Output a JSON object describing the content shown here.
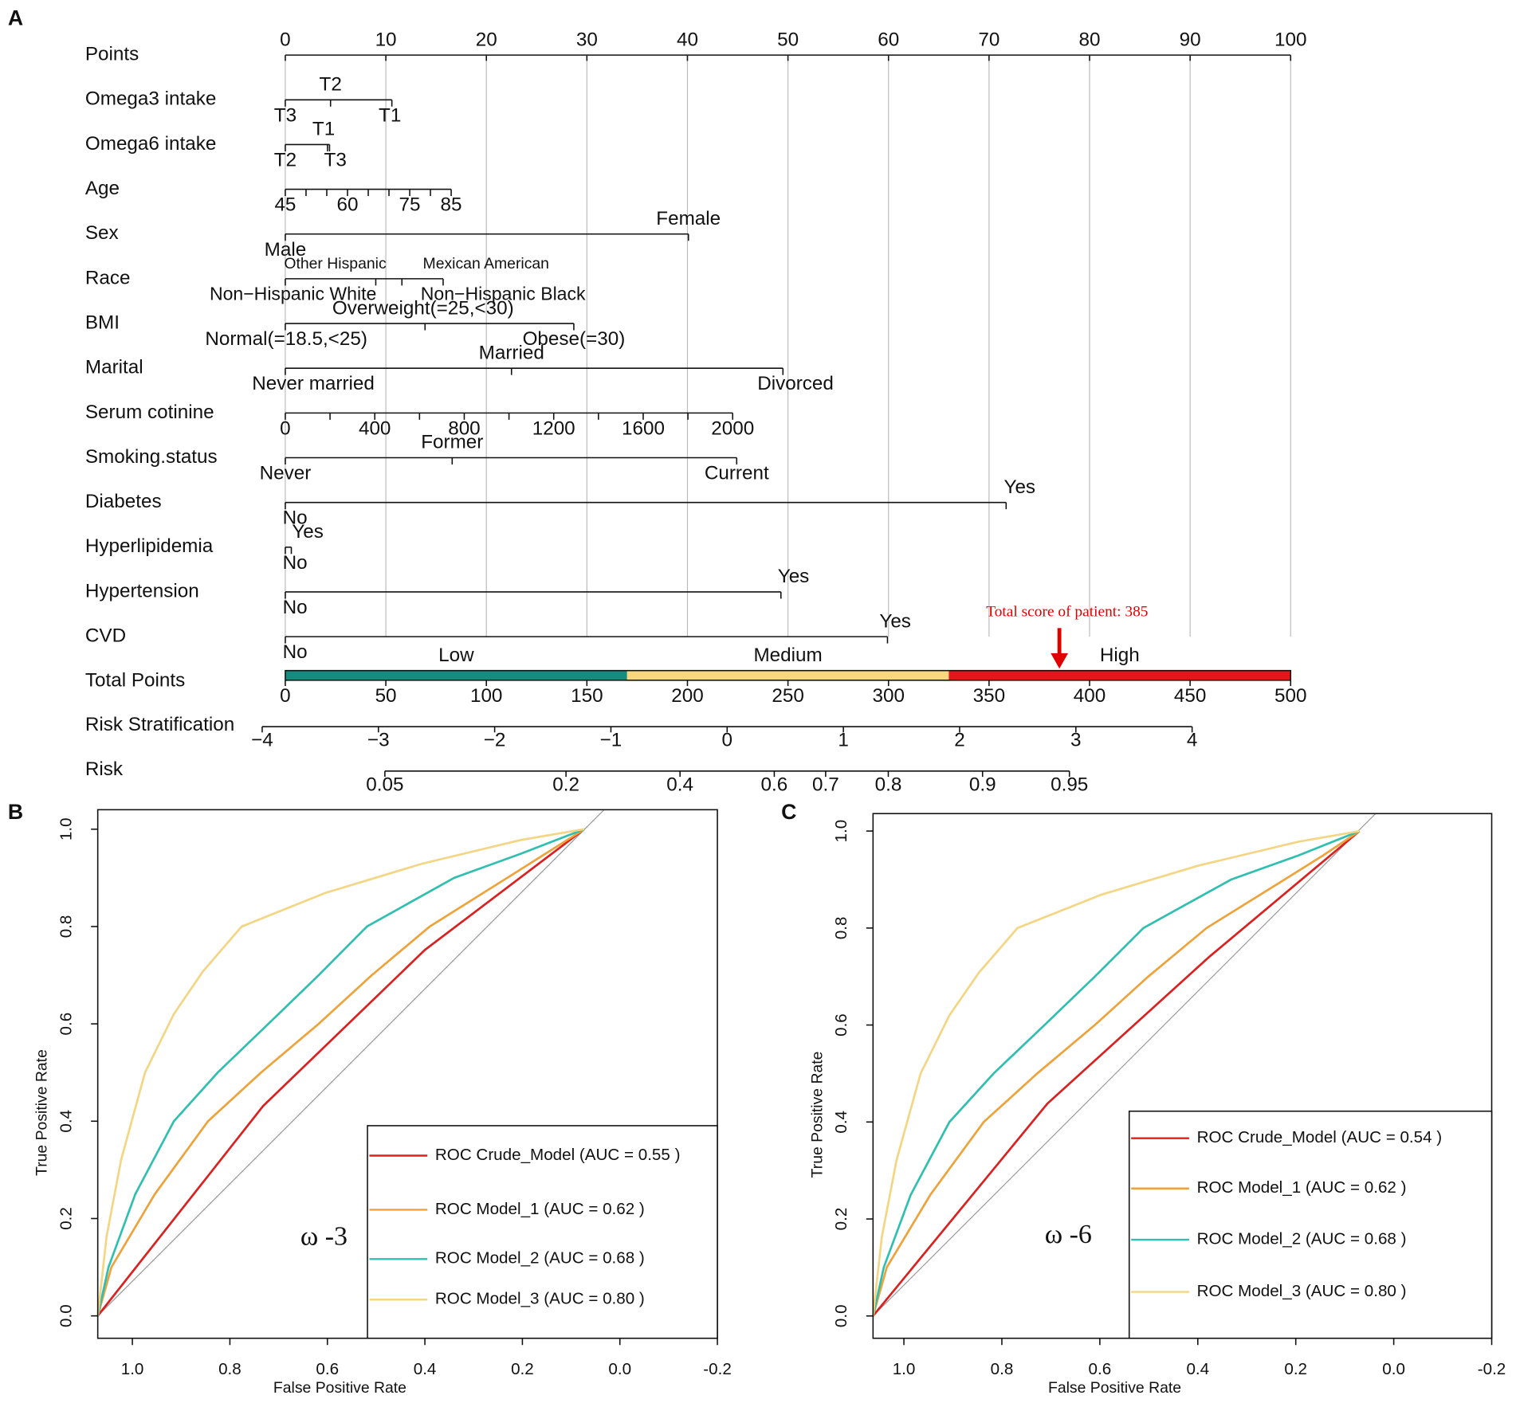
{
  "panel_labels": [
    "A",
    "B",
    "C"
  ],
  "nomogram": {
    "points": {
      "label": "Points",
      "lim": [
        0,
        100
      ],
      "ticks": [
        0,
        10,
        20,
        30,
        40,
        50,
        60,
        70,
        80,
        90,
        100
      ]
    },
    "variables": [
      {
        "label": "Omega3 intake",
        "levels": [
          {
            "label": "T3",
            "points": 0
          },
          {
            "label": "T2",
            "points": 4.5
          },
          {
            "label": "T1",
            "points": 10.6
          }
        ]
      },
      {
        "label": "Omega6 intake",
        "levels": [
          {
            "label": "T2",
            "points": 0
          },
          {
            "label": "T1",
            "points": 4.2
          },
          {
            "label": "T3",
            "points": 4.4
          }
        ]
      },
      {
        "label": "Age",
        "range": [
          45,
          85
        ],
        "points_range": [
          0,
          16.5
        ],
        "ticks": [
          45,
          60,
          75,
          85
        ],
        "minor_ticks": [
          50,
          55,
          65,
          70,
          80
        ]
      },
      {
        "label": "Sex",
        "levels": [
          {
            "label": "Male",
            "points": 0
          },
          {
            "label": "Female",
            "points": 40.1
          }
        ]
      },
      {
        "label": "Race",
        "levels": [
          {
            "label": "Non−Hispanic White",
            "points": 0
          },
          {
            "label": "Other Hispanic",
            "points": 9.0
          },
          {
            "label": "Mexican American",
            "points": 11.6
          },
          {
            "label": "Non−Hispanic Black",
            "points": 15.7
          }
        ]
      },
      {
        "label": "BMI",
        "levels": [
          {
            "label": "Normal(=18.5,<25)",
            "points": 0
          },
          {
            "label": "Overweight(=25,<30)",
            "points": 13.9
          },
          {
            "label": "Obese(=30)",
            "points": 28.7
          }
        ]
      },
      {
        "label": "Marital",
        "levels": [
          {
            "label": "Never married",
            "points": 0
          },
          {
            "label": "Married",
            "points": 22.5
          },
          {
            "label": "Divorced",
            "points": 49.5
          }
        ]
      },
      {
        "label": "Serum cotinine",
        "range": [
          0,
          2000
        ],
        "points_range": [
          0,
          44.5
        ],
        "ticks": [
          0,
          400,
          800,
          1200,
          1600,
          2000
        ],
        "minor_ticks": [
          200,
          600,
          1000,
          1400,
          1800
        ]
      },
      {
        "label": "Smoking.status",
        "levels": [
          {
            "label": "Never",
            "points": 0
          },
          {
            "label": "Former",
            "points": 16.6
          },
          {
            "label": "Current",
            "points": 44.9
          }
        ]
      },
      {
        "label": "Diabetes",
        "levels": [
          {
            "label": "No",
            "points": 0
          },
          {
            "label": "Yes",
            "points": 71.7
          }
        ]
      },
      {
        "label": "Hyperlipidemia",
        "levels": [
          {
            "label": "No",
            "points": 0
          },
          {
            "label": "Yes",
            "points": 0.6
          }
        ]
      },
      {
        "label": "Hypertension",
        "levels": [
          {
            "label": "No",
            "points": 0
          },
          {
            "label": "Yes",
            "points": 49.3
          }
        ]
      },
      {
        "label": "CVD",
        "levels": [
          {
            "label": "No",
            "points": 0
          },
          {
            "label": "Yes",
            "points": 59.9
          }
        ]
      }
    ],
    "total_points": {
      "label": "Total Points",
      "lim": [
        0,
        500
      ],
      "ticks": [
        0,
        50,
        100,
        150,
        200,
        250,
        300,
        350,
        400,
        450,
        500
      ],
      "bands": [
        {
          "label": "Low",
          "from": 0,
          "to": 170,
          "color": "#168b80"
        },
        {
          "label": "Medium",
          "from": 170,
          "to": 330,
          "color": "#f8d77f"
        },
        {
          "label": "High",
          "from": 330,
          "to": 500,
          "color": "#e3161b"
        }
      ]
    },
    "annotation": {
      "text": "Total score of patient: 385",
      "value": 385,
      "color": "#e00000"
    },
    "risk_stratification": {
      "label": "Risk Stratification",
      "lim": [
        -4,
        4
      ],
      "points_range": [
        -11.5,
        451
      ],
      "ticks": [
        {
          "value": -4,
          "label": "−4"
        },
        {
          "value": -3,
          "label": "−3"
        },
        {
          "value": -2,
          "label": "−2"
        },
        {
          "value": -1,
          "label": "−1"
        },
        0,
        1,
        2,
        3,
        4
      ]
    },
    "risk": {
      "label": "Risk",
      "scale": "logit",
      "ticks": [
        0.05,
        0.2,
        0.4,
        0.6,
        0.7,
        0.8,
        0.9,
        0.95
      ]
    }
  },
  "chart_data": [
    {
      "type": "line",
      "xlabel": "False Positive Rate",
      "ylabel": "True Positive Rate",
      "annotation": "ω -3",
      "xlim": [
        1.071,
        -0.2
      ],
      "ylim": [
        -0.046,
        1.04
      ],
      "xticks": [
        {
          "value": 1,
          "label": "1.0"
        },
        0.8,
        0.6,
        0.4,
        0.2,
        {
          "value": 0,
          "label": "0.0"
        },
        -0.2
      ],
      "yticks": [
        {
          "value": 0,
          "label": "0.0"
        },
        0.2,
        0.4,
        0.6,
        0.8,
        {
          "value": 1,
          "label": "1.0"
        }
      ],
      "series": [
        {
          "name": "ROC Crude_Model (AUC = 0.55 )",
          "color": "#dc1f1f",
          "x": [
            1.071,
            0.732,
            0.4,
            0.073
          ],
          "values": [
            0,
            0.431,
            0.752,
            1.0
          ]
        },
        {
          "name": "ROC Model_1 (AUC = 0.62 )",
          "color": "#eea23a",
          "x": [
            1.071,
            1.043,
            0.954,
            0.845,
            0.736,
            0.618,
            0.509,
            0.39,
            0.231,
            0.152,
            0.073
          ],
          "values": [
            0,
            0.1,
            0.25,
            0.4,
            0.5,
            0.6,
            0.7,
            0.8,
            0.9,
            0.95,
            1.0
          ]
        },
        {
          "name": "ROC Model_2 (AUC = 0.68 )",
          "color": "#2fbfb0",
          "x": [
            1.071,
            1.049,
            0.994,
            0.915,
            0.825,
            0.721,
            0.618,
            0.519,
            0.34,
            0.202,
            0.073
          ],
          "values": [
            0,
            0.1,
            0.25,
            0.4,
            0.5,
            0.6,
            0.7,
            0.8,
            0.9,
            0.95,
            1.0
          ]
        },
        {
          "name": "ROC Model_3 (AUC = 0.80 )",
          "color": "#f3d583",
          "x": [
            1.071,
            1.053,
            1.023,
            0.974,
            0.915,
            0.855,
            0.776,
            0.604,
            0.406,
            0.202,
            0.073
          ],
          "values": [
            0,
            0.163,
            0.321,
            0.5,
            0.62,
            0.708,
            0.8,
            0.869,
            0.929,
            0.978,
            1.0
          ]
        }
      ]
    },
    {
      "type": "line",
      "xlabel": "False Positive Rate",
      "ylabel": "True Positive Rate",
      "annotation": "ω -6",
      "xlim": [
        1.063,
        -0.2
      ],
      "ylim": [
        -0.046,
        1.036
      ],
      "xticks": [
        {
          "value": 1,
          "label": "1.0"
        },
        0.8,
        0.6,
        0.4,
        0.2,
        {
          "value": 0,
          "label": "0.0"
        },
        -0.2
      ],
      "yticks": [
        {
          "value": 0,
          "label": "0.0"
        },
        0.2,
        0.4,
        0.6,
        0.8,
        {
          "value": 1,
          "label": "1.0"
        }
      ],
      "series": [
        {
          "name": "ROC Crude_Model (AUC = 0.54 )",
          "color": "#dc1f1f",
          "x": [
            1.063,
            0.707,
            0.376,
            0.07
          ],
          "values": [
            0,
            0.438,
            0.741,
            1.0
          ]
        },
        {
          "name": "ROC Model_1 (AUC = 0.62 )",
          "color": "#eea23a",
          "x": [
            1.063,
            1.035,
            0.946,
            0.837,
            0.728,
            0.61,
            0.501,
            0.382,
            0.223,
            0.144,
            0.07
          ],
          "values": [
            0,
            0.1,
            0.25,
            0.4,
            0.5,
            0.6,
            0.7,
            0.8,
            0.9,
            0.95,
            1.0
          ]
        },
        {
          "name": "ROC Model_2 (AUC = 0.68 )",
          "color": "#2fbfb0",
          "x": [
            1.063,
            1.041,
            0.986,
            0.907,
            0.817,
            0.713,
            0.61,
            0.511,
            0.332,
            0.194,
            0.07
          ],
          "values": [
            0,
            0.1,
            0.25,
            0.4,
            0.5,
            0.6,
            0.7,
            0.8,
            0.9,
            0.95,
            1.0
          ]
        },
        {
          "name": "ROC Model_3 (AUC = 0.80 )",
          "color": "#f3d583",
          "x": [
            1.063,
            1.045,
            1.015,
            0.966,
            0.907,
            0.847,
            0.768,
            0.596,
            0.398,
            0.194,
            0.07
          ],
          "values": [
            0,
            0.163,
            0.321,
            0.5,
            0.62,
            0.708,
            0.8,
            0.869,
            0.929,
            0.978,
            1.0
          ]
        }
      ]
    }
  ]
}
